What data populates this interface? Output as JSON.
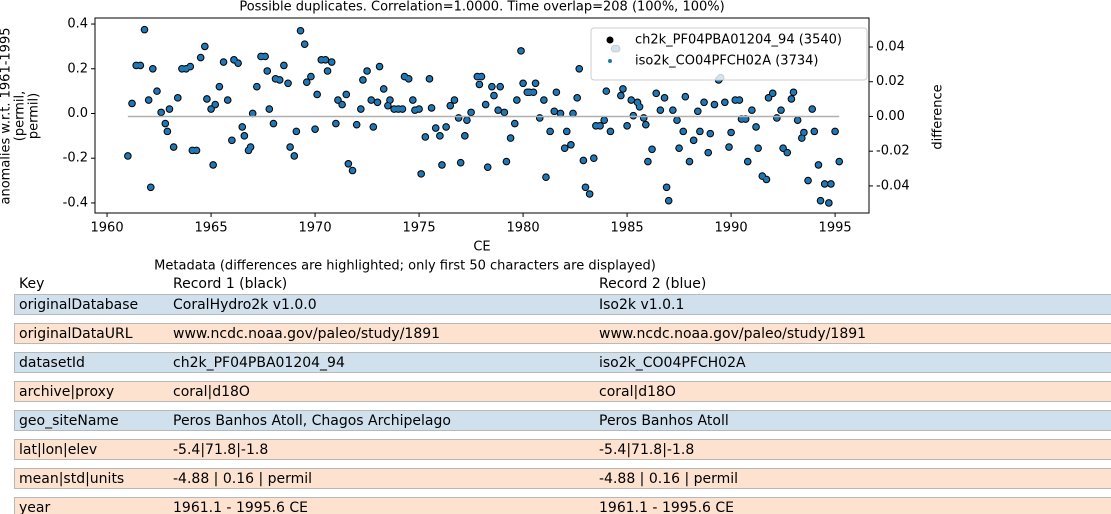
{
  "chart_data": {
    "type": "scatter",
    "title": "Possible duplicates. Correlation=1.0000. Time overlap=208 (100%, 100%)",
    "xlabel": "CE",
    "ylabel": [
      "anomalies w.r.t. 1961-1995",
      "(permil,",
      "permil)"
    ],
    "y2label": "difference",
    "legend": "upper right",
    "xlim": [
      1959.42,
      1996.63
    ],
    "xticks": [
      1960,
      1965,
      1970,
      1975,
      1980,
      1985,
      1990,
      1995
    ],
    "ylim": [
      -0.445,
      0.427
    ],
    "yticks": [
      -0.4,
      -0.2,
      {
        "value": 0,
        "label": "0.0"
      },
      0.2,
      0.4
    ],
    "y2lim": [
      -0.0556,
      0.0567
    ],
    "y2ticks": [
      -0.04,
      -0.02,
      {
        "value": 0,
        "label": "0.00"
      },
      0.02,
      0.04
    ],
    "x": [
      1961.0,
      1961.2,
      1961.4,
      1961.6,
      1961.8,
      1962.0,
      1962.1,
      1962.2,
      1962.4,
      1962.6,
      1962.8,
      1962.9,
      1963.0,
      1963.2,
      1963.4,
      1963.6,
      1963.8,
      1964.0,
      1964.1,
      1964.3,
      1964.5,
      1964.7,
      1964.8,
      1965.0,
      1965.1,
      1965.2,
      1965.4,
      1965.6,
      1965.8,
      1966.0,
      1966.1,
      1966.3,
      1966.5,
      1966.6,
      1966.8,
      1966.9,
      1967.0,
      1967.2,
      1967.4,
      1967.6,
      1967.7,
      1967.8,
      1968.0,
      1968.1,
      1968.3,
      1968.5,
      1968.7,
      1968.8,
      1969.0,
      1969.1,
      1969.3,
      1969.5,
      1969.6,
      1969.8,
      1970.0,
      1970.1,
      1970.3,
      1970.5,
      1970.6,
      1970.8,
      1971.0,
      1971.1,
      1971.3,
      1971.5,
      1971.6,
      1971.8,
      1972.0,
      1972.2,
      1972.3,
      1972.5,
      1972.7,
      1972.8,
      1973.0,
      1973.1,
      1973.3,
      1973.5,
      1973.6,
      1973.8,
      1974.0,
      1974.2,
      1974.3,
      1974.5,
      1974.7,
      1974.8,
      1975.0,
      1975.1,
      1975.3,
      1975.5,
      1975.6,
      1975.8,
      1976.0,
      1976.1,
      1976.3,
      1976.5,
      1976.7,
      1976.9,
      1977.0,
      1977.2,
      1977.3,
      1977.5,
      1977.8,
      1977.9,
      1978.0,
      1978.2,
      1978.3,
      1978.5,
      1978.6,
      1978.8,
      1978.9,
      1979.1,
      1979.2,
      1979.4,
      1979.6,
      1979.7,
      1979.9,
      1980.0,
      1980.2,
      1980.3,
      1980.5,
      1980.6,
      1980.8,
      1981.0,
      1981.1,
      1981.3,
      1981.5,
      1981.6,
      1981.8,
      1982.0,
      1982.1,
      1982.3,
      1982.4,
      1982.6,
      1982.7,
      1982.9,
      1983.0,
      1983.2,
      1983.4,
      1983.5,
      1983.7,
      1983.9,
      1984.0,
      1984.2,
      1984.4,
      1984.5,
      1984.7,
      1984.8,
      1985.0,
      1985.2,
      1985.3,
      1985.5,
      1985.6,
      1985.8,
      1985.9,
      1986.0,
      1986.2,
      1986.4,
      1986.6,
      1986.8,
      1986.9,
      1987.0,
      1987.2,
      1987.4,
      1987.5,
      1987.7,
      1987.8,
      1988.0,
      1988.2,
      1988.4,
      1988.5,
      1988.7,
      1988.9,
      1989.0,
      1989.2,
      1989.4,
      1989.5,
      1989.7,
      1989.9,
      1990.0,
      1990.2,
      1990.4,
      1990.5,
      1990.7,
      1990.8,
      1991.0,
      1991.2,
      1991.3,
      1991.5,
      1991.7,
      1991.8,
      1992.0,
      1992.2,
      1992.4,
      1992.5,
      1992.7,
      1992.9,
      1993.0,
      1993.2,
      1993.4,
      1993.5,
      1993.7,
      1993.9,
      1994.0,
      1994.2,
      1994.3,
      1994.5,
      1994.7,
      1994.8,
      1995.0,
      1995.2
    ],
    "series": [
      {
        "name": "ch2k_PF04PBA01204_94 (3540)",
        "color": "#000000",
        "values": [
          -0.19,
          0.045,
          0.215,
          0.215,
          0.375,
          0.06,
          -0.33,
          0.2,
          0.1,
          0.005,
          -0.045,
          -0.08,
          0.02,
          -0.15,
          0.07,
          0.2,
          0.2,
          0.21,
          -0.165,
          -0.165,
          0.25,
          0.3,
          0.065,
          0.02,
          -0.23,
          0.04,
          0.12,
          0.23,
          0.06,
          -0.12,
          0.24,
          0.225,
          -0.06,
          -0.1,
          -0.165,
          -0.15,
          0,
          0.12,
          0.255,
          0.255,
          0.19,
          0.02,
          -0.045,
          0.155,
          0.15,
          0.215,
          0.135,
          -0.15,
          -0.19,
          -0.08,
          0.37,
          0.31,
          0.14,
          0.165,
          -0.07,
          0.085,
          0.24,
          0.24,
          0.19,
          0.23,
          -0.045,
          0.06,
          0.04,
          0.085,
          -0.225,
          -0.255,
          -0.05,
          0.02,
          0.15,
          0.19,
          0.06,
          -0.06,
          0.05,
          0.21,
          0.11,
          0.035,
          0.06,
          0.02,
          0.02,
          0.02,
          0.165,
          0.155,
          0.06,
          0.015,
          0.02,
          -0.27,
          -0.105,
          0.155,
          0.025,
          -0.065,
          -0.1,
          -0.23,
          -0.06,
          0.035,
          0.06,
          -0.02,
          -0.22,
          -0.1,
          -0.03,
          0.005,
          0.165,
          0.13,
          0.165,
          0.04,
          -0.24,
          0.12,
          0.08,
          0.015,
          0.12,
          0.005,
          -0.215,
          -0.11,
          -0.045,
          0.06,
          0.28,
          0.135,
          0.095,
          0.095,
          0.095,
          0.135,
          -0.02,
          0.06,
          -0.285,
          -0.08,
          0.01,
          0.095,
          0,
          -0.155,
          -0.08,
          -0.14,
          0,
          0.07,
          0.2,
          -0.21,
          -0.33,
          -0.36,
          -0.2,
          -0.055,
          -0.055,
          -0.03,
          0.1,
          -0.08,
          0.29,
          0.29,
          0.08,
          0.11,
          -0.055,
          0.06,
          -0.01,
          0.05,
          0.03,
          -0.02,
          -0.05,
          -0.215,
          -0.16,
          0.09,
          0.015,
          0.07,
          -0.33,
          -0.39,
          0.015,
          -0.03,
          -0.155,
          -0.08,
          0.075,
          -0.215,
          -0.12,
          0.01,
          -0.08,
          0.05,
          -0.175,
          -0.09,
          0.04,
          0.15,
          0.16,
          0.05,
          -0.15,
          -0.085,
          0.06,
          0.06,
          -0.025,
          -0.025,
          -0.215,
          0.015,
          -0.06,
          -0.155,
          -0.28,
          -0.295,
          0.07,
          0.09,
          -0.02,
          0.015,
          -0.155,
          -0.175,
          0.065,
          0.095,
          -0.03,
          -0.11,
          -0.085,
          -0.3,
          0.02,
          -0.08,
          -0.23,
          -0.39,
          -0.315,
          -0.4,
          -0.315,
          -0.08,
          -0.215
        ]
      },
      {
        "name": "iso2k_CO04PFCH02A (3734)",
        "color": "#1f77b4",
        "values": [
          -0.19,
          0.045,
          0.215,
          0.215,
          0.375,
          0.06,
          -0.33,
          0.2,
          0.1,
          0.005,
          -0.045,
          -0.08,
          0.02,
          -0.15,
          0.07,
          0.2,
          0.2,
          0.21,
          -0.165,
          -0.165,
          0.25,
          0.3,
          0.065,
          0.02,
          -0.23,
          0.04,
          0.12,
          0.23,
          0.06,
          -0.12,
          0.24,
          0.225,
          -0.06,
          -0.1,
          -0.165,
          -0.15,
          0,
          0.12,
          0.255,
          0.255,
          0.19,
          0.02,
          -0.045,
          0.155,
          0.15,
          0.215,
          0.135,
          -0.15,
          -0.19,
          -0.08,
          0.37,
          0.31,
          0.14,
          0.165,
          -0.07,
          0.085,
          0.24,
          0.24,
          0.19,
          0.23,
          -0.045,
          0.06,
          0.04,
          0.085,
          -0.225,
          -0.255,
          -0.05,
          0.02,
          0.15,
          0.19,
          0.06,
          -0.06,
          0.05,
          0.21,
          0.11,
          0.035,
          0.06,
          0.02,
          0.02,
          0.02,
          0.165,
          0.155,
          0.06,
          0.015,
          0.02,
          -0.27,
          -0.105,
          0.155,
          0.025,
          -0.065,
          -0.1,
          -0.23,
          -0.06,
          0.035,
          0.06,
          -0.02,
          -0.22,
          -0.1,
          -0.03,
          0.005,
          0.165,
          0.13,
          0.165,
          0.04,
          -0.24,
          0.12,
          0.08,
          0.015,
          0.12,
          0.005,
          -0.215,
          -0.11,
          -0.045,
          0.06,
          0.28,
          0.135,
          0.095,
          0.095,
          0.095,
          0.135,
          -0.02,
          0.06,
          -0.285,
          -0.08,
          0.01,
          0.095,
          0,
          -0.155,
          -0.08,
          -0.14,
          0,
          0.07,
          0.2,
          -0.21,
          -0.33,
          -0.36,
          -0.2,
          -0.055,
          -0.055,
          -0.03,
          0.1,
          -0.08,
          0.29,
          0.29,
          0.08,
          0.11,
          -0.055,
          0.06,
          -0.01,
          0.05,
          0.03,
          -0.02,
          -0.05,
          -0.215,
          -0.16,
          0.09,
          0.015,
          0.07,
          -0.33,
          -0.39,
          0.015,
          -0.03,
          -0.155,
          -0.08,
          0.075,
          -0.215,
          -0.12,
          0.01,
          -0.08,
          0.05,
          -0.175,
          -0.09,
          0.04,
          0.15,
          0.16,
          0.05,
          -0.15,
          -0.085,
          0.06,
          0.06,
          -0.025,
          -0.025,
          -0.215,
          0.015,
          -0.06,
          -0.155,
          -0.28,
          -0.295,
          0.07,
          0.09,
          -0.02,
          0.015,
          -0.155,
          -0.175,
          0.065,
          0.095,
          -0.03,
          -0.11,
          -0.085,
          -0.3,
          0.02,
          -0.08,
          -0.23,
          -0.39,
          -0.315,
          -0.4,
          -0.315,
          -0.08,
          -0.215
        ]
      },
      {
        "axis": "y2",
        "color": "#b0b0b0",
        "x": [
          1961.0,
          1995.2
        ],
        "values": [
          0,
          0
        ]
      }
    ]
  },
  "table": {
    "caption": "Metadata (differences are highlighted; only first 50 characters are displayed)",
    "header": [
      "Key",
      "Record 1 (black)",
      "Record 2 (blue)"
    ],
    "differ_color": "#d0e1ed",
    "same_color": "#fde3cf",
    "rows": [
      {
        "differs": true,
        "cells": [
          "originalDatabase",
          "CoralHydro2k v1.0.0",
          "Iso2k v1.0.1"
        ]
      },
      {
        "differs": false,
        "cells": [
          "originalDataURL",
          "www.ncdc.noaa.gov/paleo/study/1891",
          "www.ncdc.noaa.gov/paleo/study/1891"
        ]
      },
      {
        "differs": true,
        "cells": [
          "datasetId",
          "ch2k_PF04PBA01204_94",
          "iso2k_CO04PFCH02A"
        ]
      },
      {
        "differs": false,
        "cells": [
          "archive|proxy",
          "coral|d18O",
          "coral|d18O"
        ]
      },
      {
        "differs": true,
        "cells": [
          "geo_siteName",
          "Peros Banhos Atoll, Chagos Archipelago",
          "Peros Banhos Atoll"
        ]
      },
      {
        "differs": false,
        "cells": [
          "lat|lon|elev",
          "-5.4|71.8|-1.8",
          "-5.4|71.8|-1.8"
        ]
      },
      {
        "differs": false,
        "cells": [
          "mean|std|units",
          "-4.88 | 0.16 | permil",
          "-4.88 | 0.16 | permil"
        ]
      },
      {
        "differs": false,
        "cells": [
          "year",
          "1961.1 - 1995.6 CE",
          "1961.1 - 1995.6 CE"
        ]
      }
    ]
  }
}
